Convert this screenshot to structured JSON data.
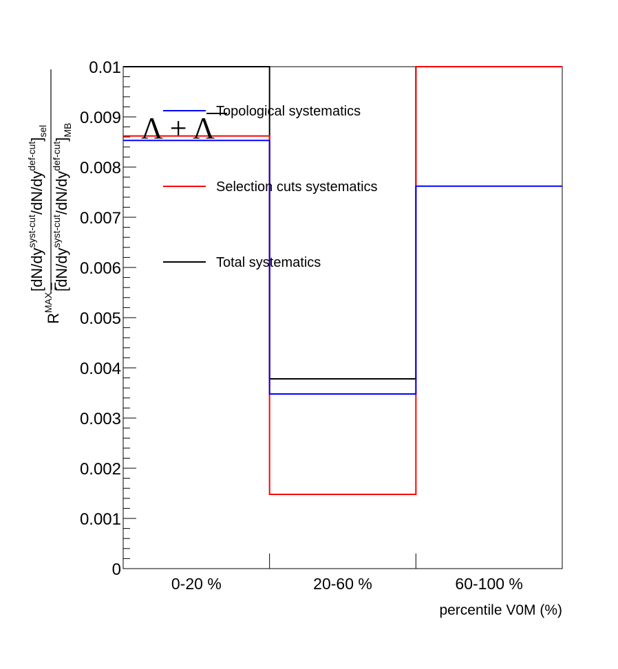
{
  "chart_data": {
    "type": "step",
    "categories": [
      "0-20 %",
      "20-60 %",
      "60-100 %"
    ],
    "xlabel": "percentile V0M (%)",
    "ylim": [
      0,
      0.01
    ],
    "yticks": [
      "0",
      "0.001",
      "0.002",
      "0.003",
      "0.004",
      "0.005",
      "0.006",
      "0.007",
      "0.008",
      "0.009",
      "0.01"
    ],
    "ylabel": {
      "prefix": "R",
      "prefix_sup": "MAX",
      "equals": "=",
      "numerator": {
        "open": "[dN/dy",
        "sup1": "syst-cut",
        "mid": "/dN/dy",
        "sup2": "def-cut",
        "close": "]",
        "sub": "sel"
      },
      "denominator": {
        "open": "[dN/dy",
        "sup1": "syst-cut",
        "mid": "/dN/dy",
        "sup2": "def-cut",
        "close": "]",
        "sub": "MB"
      }
    },
    "annotation": "Λ + Λ",
    "series": [
      {
        "name": "Topological systematics",
        "color": "#0000ff",
        "values": [
          0.00853,
          0.00348,
          0.00762
        ]
      },
      {
        "name": "Selection cuts systematics",
        "color": "#ff0000",
        "values": [
          0.00862,
          0.00148,
          0.01
        ]
      },
      {
        "name": "Total systematics",
        "color": "#000000",
        "values": [
          0.01,
          0.00378,
          0.01
        ]
      }
    ],
    "legend_position": "top-left",
    "grid": false
  }
}
